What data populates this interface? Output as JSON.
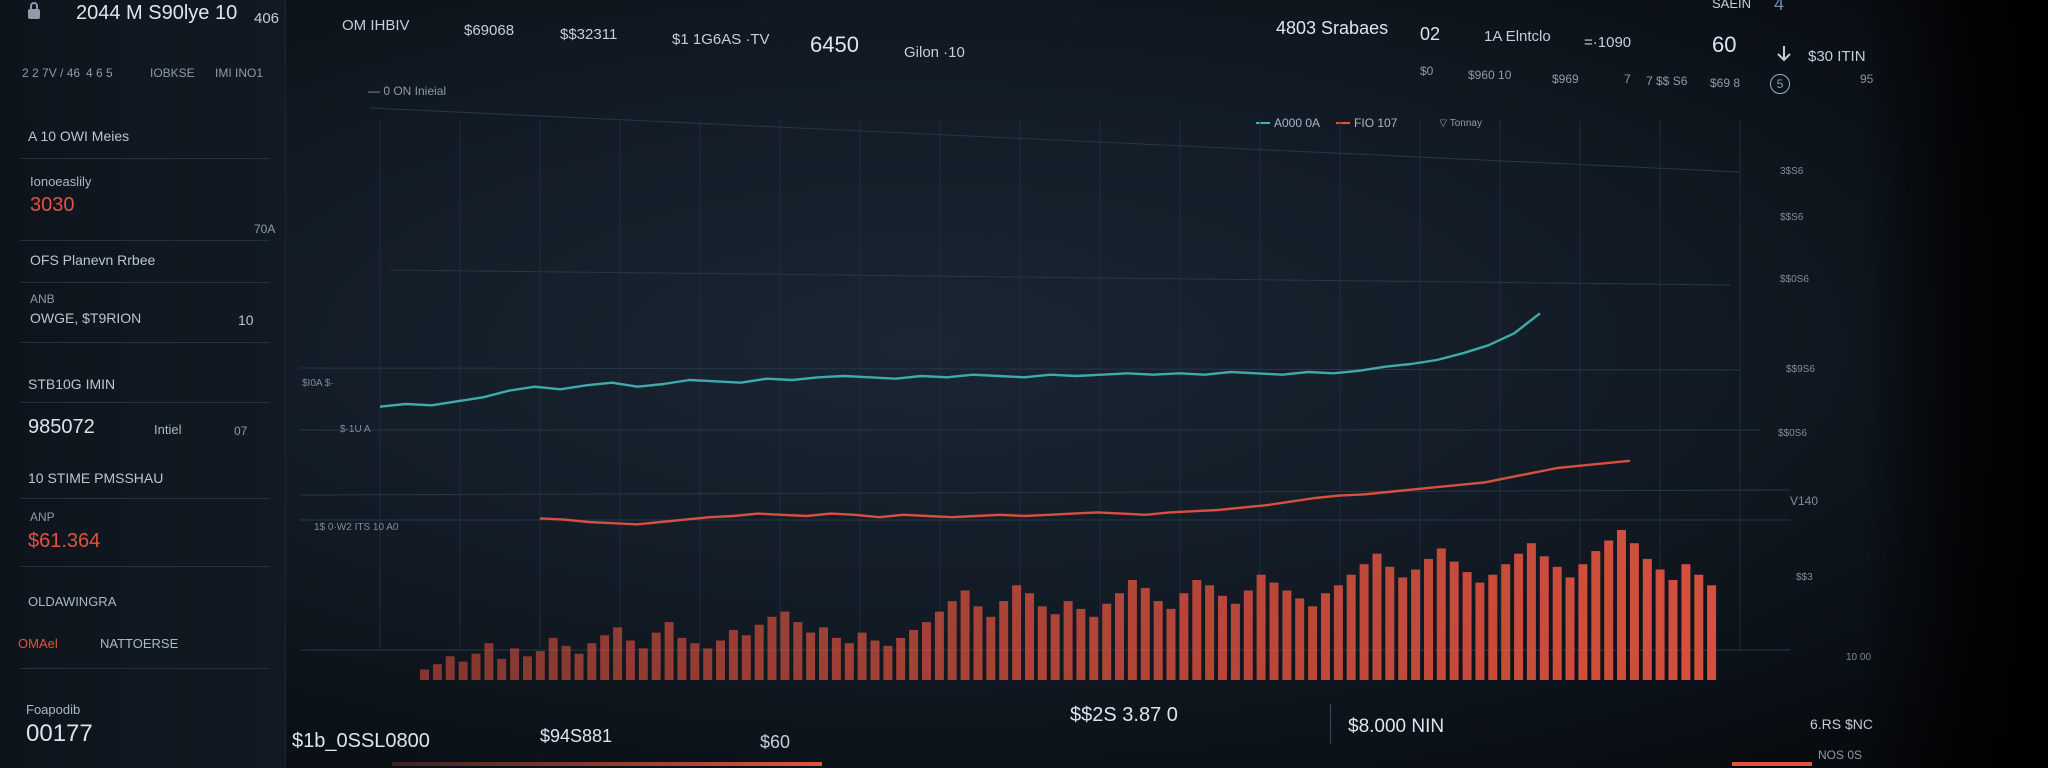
{
  "header": {
    "brand": "2044 M S90lyе 10",
    "brand_right": "406",
    "items": [
      {
        "label": "OM IHBIV"
      },
      {
        "label": "$69068"
      },
      {
        "label": "$$32311"
      },
      {
        "label": "$1 1G6AS ·TV"
      },
      {
        "label": "6450"
      },
      {
        "label": "Gilon ·10"
      }
    ],
    "right_items": [
      {
        "label": "4803 Srabaes"
      },
      {
        "label": "02"
      },
      {
        "label": "1A Elntclo"
      },
      {
        "label": "=·1090"
      },
      {
        "label": "60"
      },
      {
        "label": "$30 ITIN"
      }
    ],
    "corner": "SAEIN",
    "corner_num": "4",
    "sub_items": [
      {
        "label": "$0"
      },
      {
        "label": "$960 10"
      },
      {
        "label": "$969"
      },
      {
        "label": "7"
      },
      {
        "label": "7 $$ S6"
      },
      {
        "label": "$69 8"
      },
      {
        "label": "5"
      },
      {
        "label": "95"
      }
    ],
    "sub_left": [
      "2 2 7V / 46",
      "4 6 5",
      "IOBKSE",
      "IMI INO1"
    ]
  },
  "sidebar": {
    "heading": "A 10 OWI Meies",
    "blocks": [
      {
        "label": "Ionoeaslily",
        "value": "3030",
        "aside": "70А"
      },
      {
        "label": "OFS Planevn Rrbee",
        "value": ""
      },
      {
        "label": "ANB",
        "value": "OWGE, $T9RION",
        "aside": "10"
      },
      {
        "label": "STB10G IMIN",
        "value": ""
      },
      {
        "label": "985072",
        "value": "Intiel",
        "aside": "07"
      },
      {
        "label": "10 STIME PMSSHAU",
        "value": ""
      },
      {
        "label": "ANP",
        "value": "$61.364"
      },
      {
        "label": "OLDAWINGRA",
        "value": ""
      },
      {
        "label": "OMAel",
        "value": "NATTOERSE"
      }
    ],
    "footer_label": "Foapodib",
    "footer_value": "00177"
  },
  "chart_title": "— 0 ON Inieial",
  "legend": [
    {
      "name": "A000 0A",
      "color": "#3fb3b0"
    },
    {
      "name": "FIO 107",
      "color": "#e2533f"
    },
    {
      "name": "▽ Tonnay",
      "color": "#8e9bab"
    }
  ],
  "y_labels_right": [
    "3$S6",
    "$$S6",
    "$$0S6",
    "$$9S6",
    "$$0S6",
    "V140",
    "$$3",
    "10 00"
  ],
  "y_labels_left": [
    "$I0A $·",
    "$·1U A",
    "1$ 0·W2 ITS 10 A0"
  ],
  "footer": {
    "items": [
      {
        "label": "$1b_0SSL0800"
      },
      {
        "label": "$94S881"
      },
      {
        "label": "$60"
      },
      {
        "label": "$$2S 3.87 0"
      },
      {
        "label": "$8.000 NIN"
      },
      {
        "label": "6.RS $NC"
      },
      {
        "label": "NOS 0S"
      }
    ]
  },
  "chart_data": {
    "type": "line",
    "series": [
      {
        "name": "A000 0A",
        "color": "#3fb3b0",
        "values": [
          40,
          42,
          41,
          44,
          47,
          52,
          55,
          53,
          56,
          58,
          55,
          57,
          60,
          59,
          58,
          61,
          60,
          62,
          63,
          62,
          61,
          63,
          62,
          64,
          63,
          62,
          64,
          63,
          64,
          65,
          64,
          65,
          64,
          66,
          65,
          64,
          66,
          65,
          67,
          70,
          72,
          75,
          80,
          86,
          95,
          110
        ]
      },
      {
        "name": "FIO 107",
        "color": "#e2533f",
        "values": [
          18,
          17,
          15,
          14,
          13,
          15,
          17,
          19,
          20,
          22,
          21,
          20,
          22,
          21,
          19,
          21,
          20,
          19,
          20,
          21,
          20,
          21,
          22,
          23,
          22,
          21,
          23,
          24,
          25,
          27,
          29,
          32,
          35,
          37,
          38,
          40,
          42,
          44,
          46,
          48,
          52,
          56,
          60,
          62,
          64,
          66
        ]
      }
    ],
    "bars": [
      4,
      6,
      9,
      7,
      10,
      14,
      8,
      12,
      9,
      11,
      16,
      13,
      10,
      14,
      17,
      20,
      15,
      12,
      18,
      22,
      16,
      14,
      12,
      15,
      19,
      17,
      21,
      24,
      26,
      22,
      18,
      20,
      16,
      14,
      18,
      15,
      13,
      16,
      19,
      22,
      26,
      30,
      34,
      28,
      24,
      30,
      36,
      33,
      28,
      25,
      30,
      27,
      24,
      29,
      33,
      38,
      35,
      30,
      27,
      33,
      38,
      36,
      32,
      29,
      34,
      40,
      37,
      34,
      31,
      28,
      33,
      36,
      40,
      44,
      48,
      43,
      39,
      42,
      46,
      50,
      45,
      41,
      37,
      40,
      44,
      48,
      52,
      47,
      43,
      39,
      44,
      49,
      53,
      57,
      52,
      46,
      42,
      38,
      44,
      40,
      36
    ],
    "grid": true
  }
}
